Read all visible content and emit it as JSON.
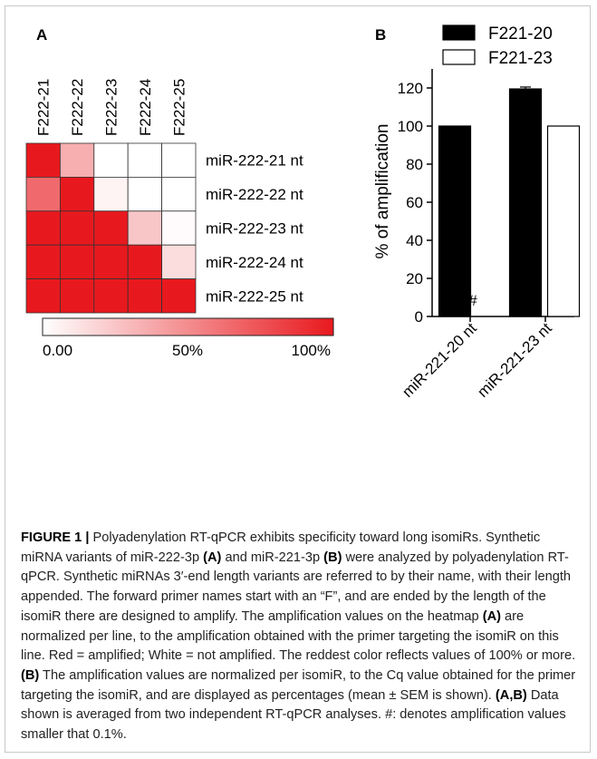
{
  "panel_a": {
    "label": "A",
    "legend_min_label": "0.00",
    "legend_mid_label": "50%",
    "legend_max_label": "100%"
  },
  "panel_b": {
    "label": "B",
    "hash_marker": "#"
  },
  "colors": {
    "amplified": "#e8191e",
    "not_amplified": "#ffffff",
    "bar_fill_1": "#000000",
    "bar_fill_2": "#ffffff"
  },
  "chart_data": [
    {
      "type": "heatmap",
      "columns": [
        "F222-21",
        "F222-22",
        "F222-23",
        "F222-24",
        "F222-25"
      ],
      "rows": [
        "miR-222-21 nt",
        "miR-222-22 nt",
        "miR-222-23 nt",
        "miR-222-24 nt",
        "miR-222-25 nt"
      ],
      "values": [
        [
          100,
          35,
          0,
          0,
          0
        ],
        [
          65,
          100,
          5,
          0,
          0
        ],
        [
          100,
          100,
          100,
          25,
          2
        ],
        [
          100,
          100,
          100,
          100,
          15
        ],
        [
          100,
          100,
          100,
          100,
          100
        ]
      ],
      "scale": {
        "min": 0,
        "max": 100,
        "tick_labels": [
          "0.00",
          "50%",
          "100%"
        ]
      }
    },
    {
      "type": "bar",
      "categories": [
        "miR-221-20 nt",
        "miR-221-23 nt"
      ],
      "series": [
        {
          "name": "F221-20",
          "values": [
            100,
            119.5
          ],
          "errors": [
            0,
            1
          ]
        },
        {
          "name": "F221-23",
          "values": [
            0,
            100
          ],
          "errors": [
            0,
            0
          ]
        }
      ],
      "ylabel": "% of amplification",
      "ylim": [
        0,
        130
      ],
      "yticks": [
        0,
        20,
        40,
        60,
        80,
        100,
        120
      ],
      "legend_position": "top",
      "annotations": [
        "#"
      ]
    }
  ],
  "caption": {
    "figure_label": "FIGURE 1 |",
    "s1": " Polyadenylation RT-qPCR exhibits specificity toward long isomiRs. Synthetic miRNA variants of miR-222-3p ",
    "ref_a1": "(A)",
    "s2": " and miR-221-3p ",
    "ref_b1": "(B)",
    "s3": " were analyzed by polyadenylation RT-qPCR. Synthetic miRNAs 3′-end length variants are referred to by their name, with their length appended. The forward primer names start with an “F”, and are ended by the length of the isomiR there are designed to amplify. The amplification values on the heatmap ",
    "ref_a2": "(A)",
    "s4": " are normalized per line, to the amplification obtained with the primer targeting the isomiR on this line. Red = amplified; White = not amplified. The reddest color reflects values of 100% or more. ",
    "ref_b2": "(B)",
    "s5": " The amplification values are normalized per isomiR, to the Cq value obtained for the primer targeting the isomiR, and are displayed as percentages (mean ± SEM is shown). ",
    "ref_ab": "(A,B)",
    "s6": " Data shown is averaged from two independent RT-qPCR analyses. #: denotes amplification values smaller that 0.1%."
  }
}
